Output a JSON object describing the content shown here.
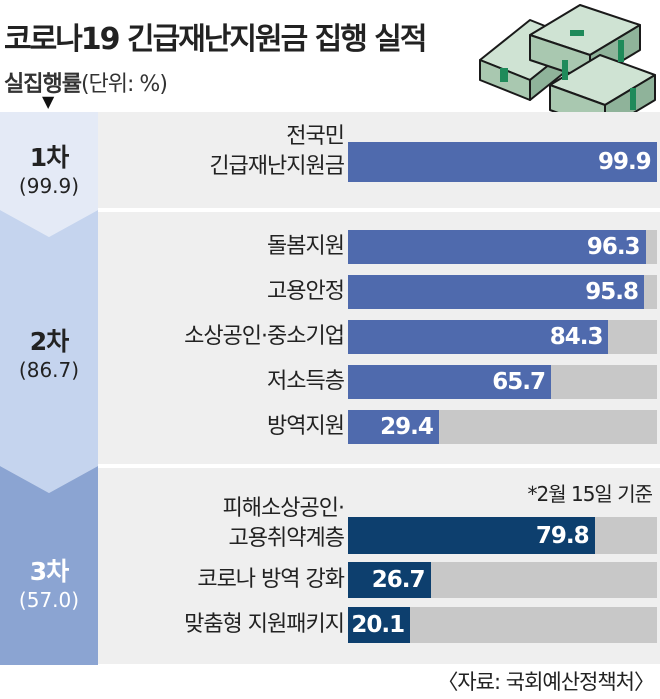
{
  "chart_data": {
    "type": "bar",
    "title": "코로나19 긴급재난지원금 집행 실적",
    "ylabel": "실집행률",
    "unit": "(단위: %)",
    "xlim": [
      0,
      100
    ],
    "groups": [
      {
        "name": "1차",
        "value_label": "(99.9)",
        "value": 99.9,
        "color": "#4f6aad",
        "categories": [
          "전국민 긴급재난지원금"
        ],
        "values": [
          99.9
        ],
        "value_labels": [
          "99.9"
        ]
      },
      {
        "name": "2차",
        "value_label": "(86.7)",
        "value": 86.7,
        "color": "#4f6aad",
        "categories": [
          "돌봄지원",
          "고용안정",
          "소상공인·중소기업",
          "저소득층",
          "방역지원"
        ],
        "values": [
          96.3,
          95.8,
          84.3,
          65.7,
          29.4
        ],
        "value_labels": [
          "96.3",
          "95.8",
          "84.3",
          "65.7",
          "29.4"
        ]
      },
      {
        "name": "3차",
        "value_label": "(57.0)",
        "value": 57.0,
        "color": "#0d3f6e",
        "categories": [
          "피해소상공인· 고용취약계층",
          "코로나 방역 강화",
          "맞춤형 지원패키지"
        ],
        "values": [
          79.8,
          26.7,
          20.1
        ],
        "value_labels": [
          "79.8",
          "26.7",
          "20.1"
        ]
      }
    ],
    "label_lines": {
      "g0c0": [
        "전국민",
        "긴급재난지원금"
      ],
      "g2c0": [
        "피해소상공인·",
        "고용취약계층"
      ]
    },
    "note": "*2월 15일 기준",
    "source": "〈자료: 국회예산정책처〉"
  }
}
